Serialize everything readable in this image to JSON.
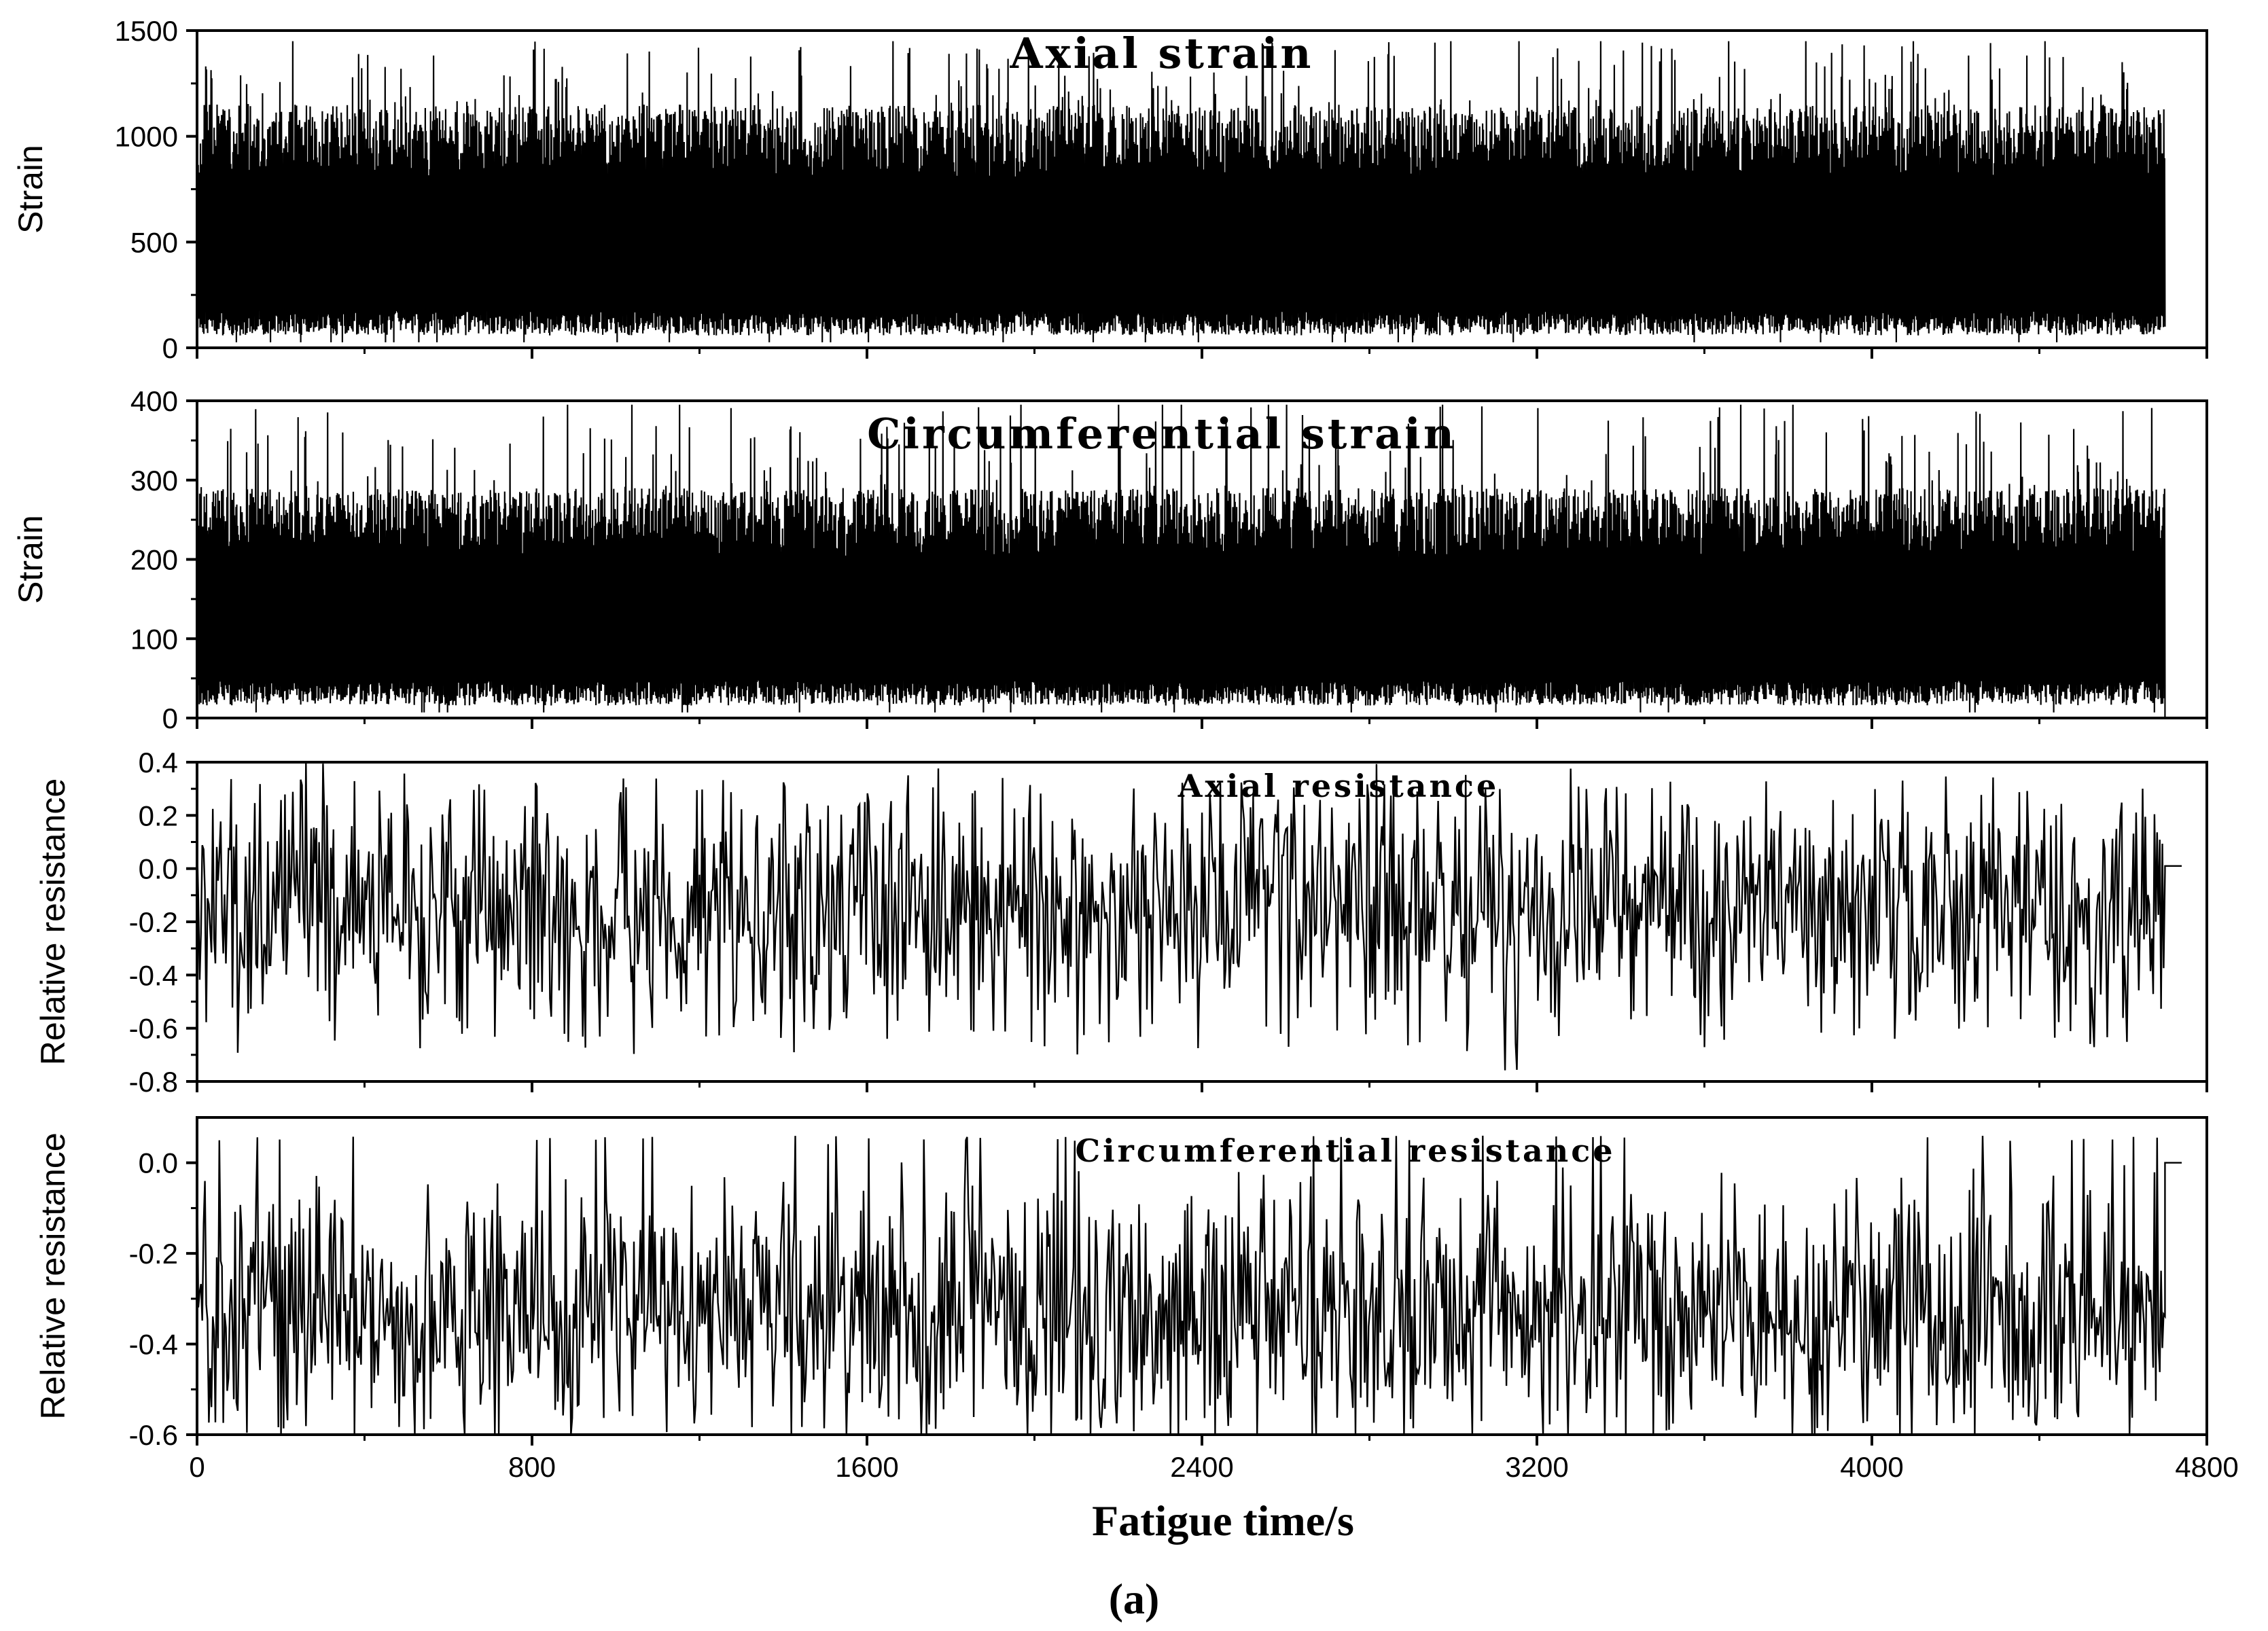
{
  "figure": {
    "x_title": "Fatigue time/s",
    "caption": "(a)"
  },
  "chart_data": [
    {
      "type": "line",
      "title": "Axial strain",
      "ylabel": "Strain",
      "xlabel": "Fatigue time/s",
      "xlim": [
        0,
        4800
      ],
      "ylim": [
        0,
        1500
      ],
      "yticks": [
        0,
        500,
        1000,
        1500
      ],
      "ytick_labels": [
        "0",
        "500",
        "1000",
        "1500"
      ],
      "series": [
        {
          "time_range": [
            0,
            4700
          ],
          "band": "dense oscillation",
          "lower_envelope_approx": 130,
          "upper_envelope_approx": 1150,
          "peak_max_approx": 1450,
          "end_value": 100
        }
      ]
    },
    {
      "type": "line",
      "title": "Circumferential strain",
      "ylabel": "Strain",
      "xlabel": "Fatigue time/s",
      "xlim": [
        0,
        4800
      ],
      "ylim": [
        0,
        400
      ],
      "yticks": [
        0,
        100,
        200,
        300,
        400
      ],
      "ytick_labels": [
        "0",
        "100",
        "200",
        "300",
        "400"
      ],
      "series": [
        {
          "time_range": [
            0,
            4700
          ],
          "band": "dense oscillation",
          "lower_envelope_approx": 35,
          "upper_envelope_approx": 290,
          "peak_max_approx": 395,
          "end_value": 0
        }
      ]
    },
    {
      "type": "line",
      "title": "Axial resistance",
      "ylabel": "Relative resistance",
      "xlabel": "Fatigue time/s",
      "xlim": [
        0,
        4800
      ],
      "ylim": [
        -0.8,
        0.4
      ],
      "yticks": [
        -0.8,
        -0.6,
        -0.4,
        -0.2,
        0.0,
        0.2,
        0.4
      ],
      "ytick_labels": [
        "-0.8",
        "-0.6",
        "-0.4",
        "-0.2",
        "0.0",
        "0.2",
        "0.4"
      ],
      "series": [
        {
          "time_range": [
            0,
            4740
          ],
          "start_value": 0.1,
          "mean_approx": -0.15,
          "range_approx": [
            -0.7,
            0.35
          ],
          "end_value": 0.01
        }
      ]
    },
    {
      "type": "line",
      "title": "Circumferential resistance",
      "ylabel": "Relative resistance",
      "xlabel": "Fatigue time/s",
      "xlim": [
        0,
        4800
      ],
      "ylim": [
        -0.6,
        0.1
      ],
      "yticks": [
        -0.6,
        -0.4,
        -0.2,
        0.0
      ],
      "ytick_labels": [
        "-0.6",
        "-0.4",
        "-0.2",
        "0.0"
      ],
      "xticks": [
        0,
        800,
        1600,
        2400,
        3200,
        4000,
        4800
      ],
      "xtick_labels": [
        "0",
        "800",
        "1600",
        "2400",
        "3200",
        "4000",
        "4800"
      ],
      "series": [
        {
          "time_range": [
            0,
            4740
          ],
          "start_value": 0.0,
          "mean_approx": -0.33,
          "range_approx": [
            -0.6,
            0.06
          ],
          "end_value": 0.0
        }
      ]
    }
  ]
}
